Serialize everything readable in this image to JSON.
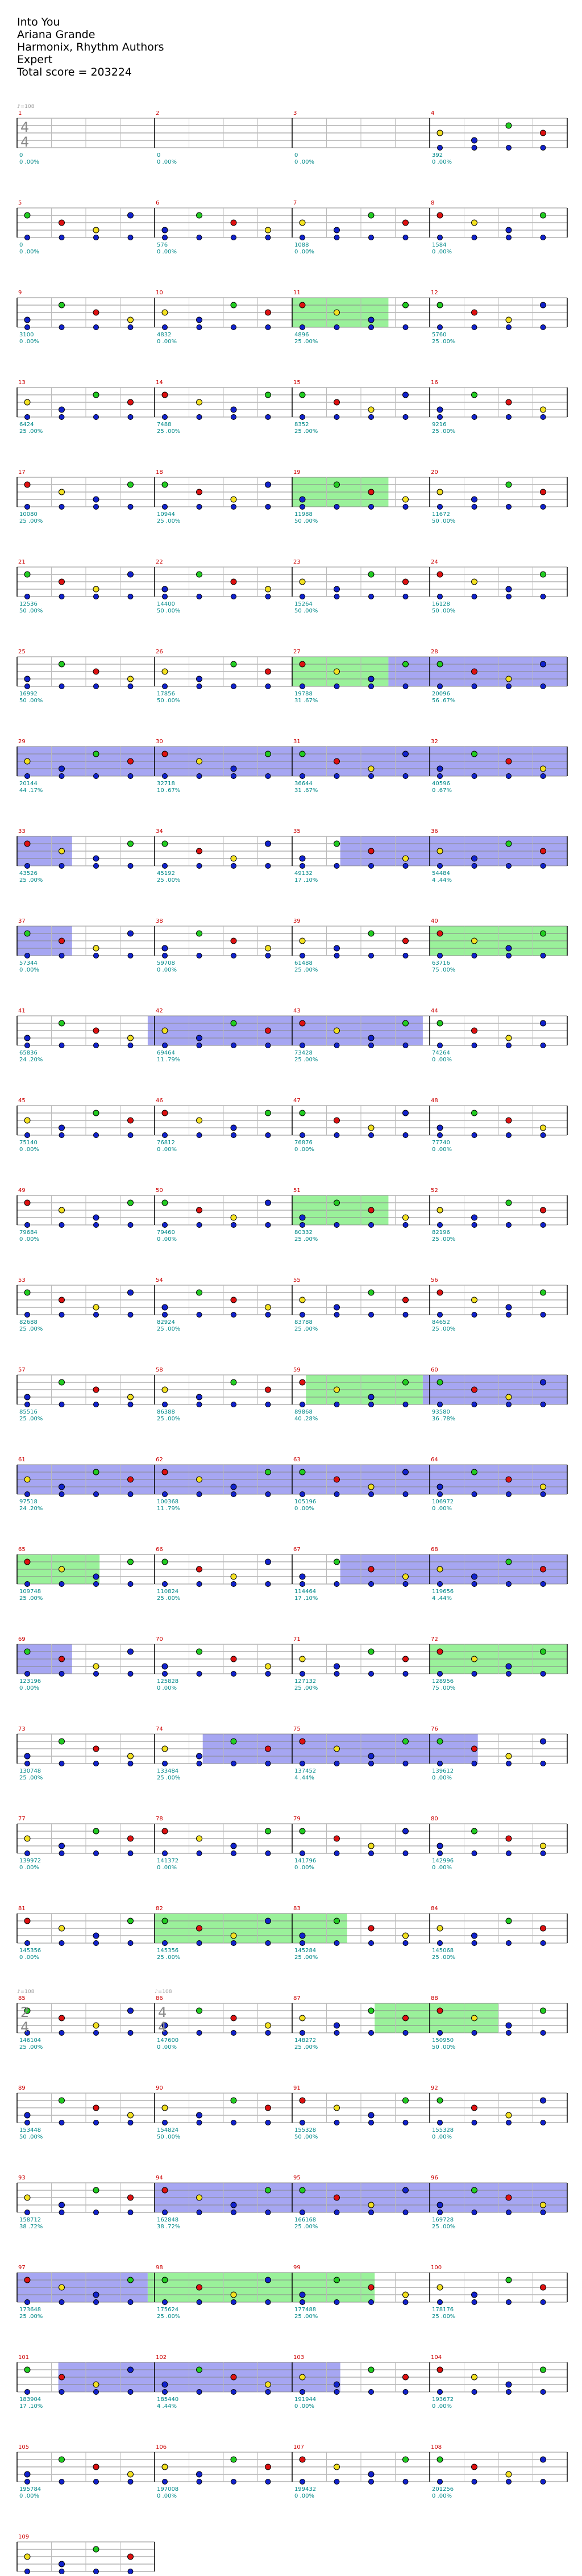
{
  "song": {
    "title": "Into You",
    "artist": "Ariana Grande",
    "charter": "Harmonix, Rhythm Authors",
    "difficulty": "Expert",
    "total_score": "Total score = 203224"
  },
  "tempo_markers": [
    {
      "measure": 1,
      "label": "♪=108"
    },
    {
      "measure": 85,
      "label": "♪=108"
    },
    {
      "measure": 86,
      "label": "♪=108"
    }
  ],
  "time_signatures": [
    {
      "measure": 1,
      "num": "4",
      "den": "4"
    },
    {
      "measure": 85,
      "num": "2",
      "den": "4"
    },
    {
      "measure": 86,
      "num": "4",
      "den": "4"
    }
  ],
  "colors": {
    "green": "#22cc22",
    "red": "#dd1111",
    "yellow": "#f2e022",
    "blue": "#1122cc",
    "orange": "#ff9a00",
    "overdrive": "#88ee88",
    "solo": "#8888ee",
    "measure_number": "#cc0000",
    "score_text": "#008888",
    "beat_marker": "#bbbbbb"
  },
  "rows": [
    {
      "measures": [
        {
          "n": 1,
          "score": "0",
          "mult": "0 .00%"
        },
        {
          "n": 2,
          "score": "0",
          "mult": "0 .00%"
        },
        {
          "n": 3,
          "score": "0",
          "mult": "0 .00%"
        },
        {
          "n": 4,
          "score": "392",
          "mult": "0 .00%"
        }
      ]
    },
    {
      "measures": [
        {
          "n": 5,
          "score": "0",
          "mult": "0 .00%"
        },
        {
          "n": 6,
          "score": "576",
          "mult": "0 .00%"
        },
        {
          "n": 7,
          "score": "1088",
          "mult": "0 .00%"
        },
        {
          "n": 8,
          "score": "1584",
          "mult": "0 .00%"
        }
      ]
    },
    {
      "measures": [
        {
          "n": 9,
          "score": "3100",
          "mult": "0 .00%"
        },
        {
          "n": 10,
          "score": "4832",
          "mult": "0 .00%"
        },
        {
          "n": 11,
          "score": "4896",
          "mult": "25 .00%"
        },
        {
          "n": 12,
          "score": "5760",
          "mult": "25 .00%"
        }
      ]
    },
    {
      "measures": [
        {
          "n": 13,
          "score": "6424",
          "mult": "25 .00%"
        },
        {
          "n": 14,
          "score": "7488",
          "mult": "25 .00%"
        },
        {
          "n": 15,
          "score": "8352",
          "mult": "25 .00%"
        },
        {
          "n": 16,
          "score": "9216",
          "mult": "25 .00%"
        }
      ]
    },
    {
      "measures": [
        {
          "n": 17,
          "score": "10080",
          "mult": "25 .00%"
        },
        {
          "n": 18,
          "score": "10944",
          "mult": "25 .00%"
        },
        {
          "n": 19,
          "score": "11988",
          "mult": "50 .00%"
        },
        {
          "n": 20,
          "score": "11672",
          "mult": "50 .00%"
        }
      ]
    },
    {
      "measures": [
        {
          "n": 21,
          "score": "12536",
          "mult": "50 .00%"
        },
        {
          "n": 22,
          "score": "14400",
          "mult": "50 .00%"
        },
        {
          "n": 23,
          "score": "15264",
          "mult": "50 .00%"
        },
        {
          "n": 24,
          "score": "16128",
          "mult": "50 .00%"
        }
      ]
    },
    {
      "measures": [
        {
          "n": 25,
          "score": "16992",
          "mult": "50 .00%"
        },
        {
          "n": 26,
          "score": "17856",
          "mult": "50 .00%"
        },
        {
          "n": 27,
          "score": "19788",
          "mult": "31 .67%"
        },
        {
          "n": 28,
          "score": "20096",
          "mult": "56 .67%"
        }
      ]
    },
    {
      "measures": [
        {
          "n": 29,
          "score": "20144",
          "mult": "44 .17%"
        },
        {
          "n": 30,
          "score": "32718",
          "mult": "10 .67%"
        },
        {
          "n": 31,
          "score": "36644",
          "mult": "31 .67%"
        },
        {
          "n": 32,
          "score": "40596",
          "mult": "0 .67%"
        }
      ]
    },
    {
      "measures": [
        {
          "n": 33,
          "score": "43526",
          "mult": "25 .00%"
        },
        {
          "n": 34,
          "score": "45192",
          "mult": "25 .00%"
        },
        {
          "n": 35,
          "score": "49132",
          "mult": "17 .10%"
        },
        {
          "n": 36,
          "score": "54484",
          "mult": "4 .44%"
        }
      ]
    },
    {
      "measures": [
        {
          "n": 37,
          "score": "57344",
          "mult": "0 .00%"
        },
        {
          "n": 38,
          "score": "59708",
          "mult": "0 .00%"
        },
        {
          "n": 39,
          "score": "61488",
          "mult": "25 .00%"
        },
        {
          "n": 40,
          "score": "63716",
          "mult": "75 .00%"
        }
      ]
    },
    {
      "measures": [
        {
          "n": 41,
          "score": "65836",
          "mult": "24 .20%"
        },
        {
          "n": 42,
          "score": "69464",
          "mult": "11 .79%"
        },
        {
          "n": 43,
          "score": "73428",
          "mult": "25 .00%"
        },
        {
          "n": 44,
          "score": "74264",
          "mult": "0 .00%"
        }
      ]
    },
    {
      "measures": [
        {
          "n": 45,
          "score": "75140",
          "mult": "0 .00%"
        },
        {
          "n": 46,
          "score": "76812",
          "mult": "0 .00%"
        },
        {
          "n": 47,
          "score": "76876",
          "mult": "0 .00%"
        },
        {
          "n": 48,
          "score": "77740",
          "mult": "0 .00%"
        }
      ]
    },
    {
      "measures": [
        {
          "n": 49,
          "score": "79684",
          "mult": "0 .00%"
        },
        {
          "n": 50,
          "score": "79460",
          "mult": "0 .00%"
        },
        {
          "n": 51,
          "score": "80332",
          "mult": "25 .00%"
        },
        {
          "n": 52,
          "score": "82196",
          "mult": "25 .00%"
        }
      ]
    },
    {
      "measures": [
        {
          "n": 53,
          "score": "82688",
          "mult": "25 .00%"
        },
        {
          "n": 54,
          "score": "82924",
          "mult": "25 .00%"
        },
        {
          "n": 55,
          "score": "83788",
          "mult": "25 .00%"
        },
        {
          "n": 56,
          "score": "84652",
          "mult": "25 .00%"
        }
      ]
    },
    {
      "measures": [
        {
          "n": 57,
          "score": "85516",
          "mult": "25 .00%"
        },
        {
          "n": 58,
          "score": "86388",
          "mult": "25 .00%"
        },
        {
          "n": 59,
          "score": "89868",
          "mult": "40 .28%"
        },
        {
          "n": 60,
          "score": "93580",
          "mult": "36 .78%"
        }
      ]
    },
    {
      "measures": [
        {
          "n": 61,
          "score": "97518",
          "mult": "24 .20%"
        },
        {
          "n": 62,
          "score": "100368",
          "mult": "11 .79%"
        },
        {
          "n": 63,
          "score": "105196",
          "mult": "0 .00%"
        },
        {
          "n": 64,
          "score": "106972",
          "mult": "0 .00%"
        }
      ]
    },
    {
      "measures": [
        {
          "n": 65,
          "score": "109748",
          "mult": "25 .00%"
        },
        {
          "n": 66,
          "score": "110824",
          "mult": "25 .00%"
        },
        {
          "n": 67,
          "score": "114464",
          "mult": "17 .10%"
        },
        {
          "n": 68,
          "score": "119656",
          "mult": "4 .44%"
        }
      ]
    },
    {
      "measures": [
        {
          "n": 69,
          "score": "123196",
          "mult": "0 .00%"
        },
        {
          "n": 70,
          "score": "125828",
          "mult": "0 .00%"
        },
        {
          "n": 71,
          "score": "127132",
          "mult": "25 .00%"
        },
        {
          "n": 72,
          "score": "128956",
          "mult": "75 .00%"
        }
      ]
    },
    {
      "measures": [
        {
          "n": 73,
          "score": "130748",
          "mult": "25 .00%"
        },
        {
          "n": 74,
          "score": "133484",
          "mult": "25 .00%"
        },
        {
          "n": 75,
          "score": "137452",
          "mult": "4 .44%"
        },
        {
          "n": 76,
          "score": "139612",
          "mult": "0 .00%"
        }
      ]
    },
    {
      "measures": [
        {
          "n": 77,
          "score": "139972",
          "mult": "0 .00%"
        },
        {
          "n": 78,
          "score": "141372",
          "mult": "0 .00%"
        },
        {
          "n": 79,
          "score": "141796",
          "mult": "0 .00%"
        },
        {
          "n": 80,
          "score": "142996",
          "mult": "0 .00%"
        }
      ]
    },
    {
      "measures": [
        {
          "n": 81,
          "score": "145356",
          "mult": "0 .00%"
        },
        {
          "n": 82,
          "score": "145356",
          "mult": "25 .00%"
        },
        {
          "n": 83,
          "score": "145284",
          "mult": "25 .00%"
        },
        {
          "n": 84,
          "score": "145068",
          "mult": "25 .00%"
        }
      ]
    },
    {
      "measures": [
        {
          "n": 85,
          "score": "146104",
          "mult": "25 .00%"
        },
        {
          "n": 86,
          "score": "147600",
          "mult": "0 .00%"
        },
        {
          "n": 87,
          "score": "148272",
          "mult": "25 .00%"
        },
        {
          "n": 88,
          "score": "150950",
          "mult": "50 .00%"
        }
      ]
    },
    {
      "measures": [
        {
          "n": 89,
          "score": "153448",
          "mult": "50 .00%"
        },
        {
          "n": 90,
          "score": "154824",
          "mult": "50 .00%"
        },
        {
          "n": 91,
          "score": "155328",
          "mult": "50 .00%"
        },
        {
          "n": 92,
          "score": "155328",
          "mult": "0 .00%"
        }
      ]
    },
    {
      "measures": [
        {
          "n": 93,
          "score": "158712",
          "mult": "38 .72%"
        },
        {
          "n": 94,
          "score": "162848",
          "mult": "38 .72%"
        },
        {
          "n": 95,
          "score": "166168",
          "mult": "25 .00%"
        },
        {
          "n": 96,
          "score": "169728",
          "mult": "25 .00%"
        }
      ]
    },
    {
      "measures": [
        {
          "n": 97,
          "score": "173648",
          "mult": "25 .00%"
        },
        {
          "n": 98,
          "score": "175624",
          "mult": "25 .00%"
        },
        {
          "n": 99,
          "score": "177488",
          "mult": "25 .00%"
        },
        {
          "n": 100,
          "score": "178176",
          "mult": "25 .00%"
        }
      ]
    },
    {
      "measures": [
        {
          "n": 101,
          "score": "183904",
          "mult": "17 .10%"
        },
        {
          "n": 102,
          "score": "185440",
          "mult": "4 .44%"
        },
        {
          "n": 103,
          "score": "191944",
          "mult": "0 .00%"
        },
        {
          "n": 104,
          "score": "193672",
          "mult": "0 .00%"
        }
      ]
    },
    {
      "measures": [
        {
          "n": 105,
          "score": "195784",
          "mult": "0 .00%"
        },
        {
          "n": 106,
          "score": "197008",
          "mult": "0 .00%"
        },
        {
          "n": 107,
          "score": "199432",
          "mult": "0 .00%"
        },
        {
          "n": 108,
          "score": "201256",
          "mult": "0 .00%"
        }
      ]
    },
    {
      "measures": [
        {
          "n": 109,
          "score": "203224",
          "mult": "0 .00%"
        }
      ]
    }
  ]
}
